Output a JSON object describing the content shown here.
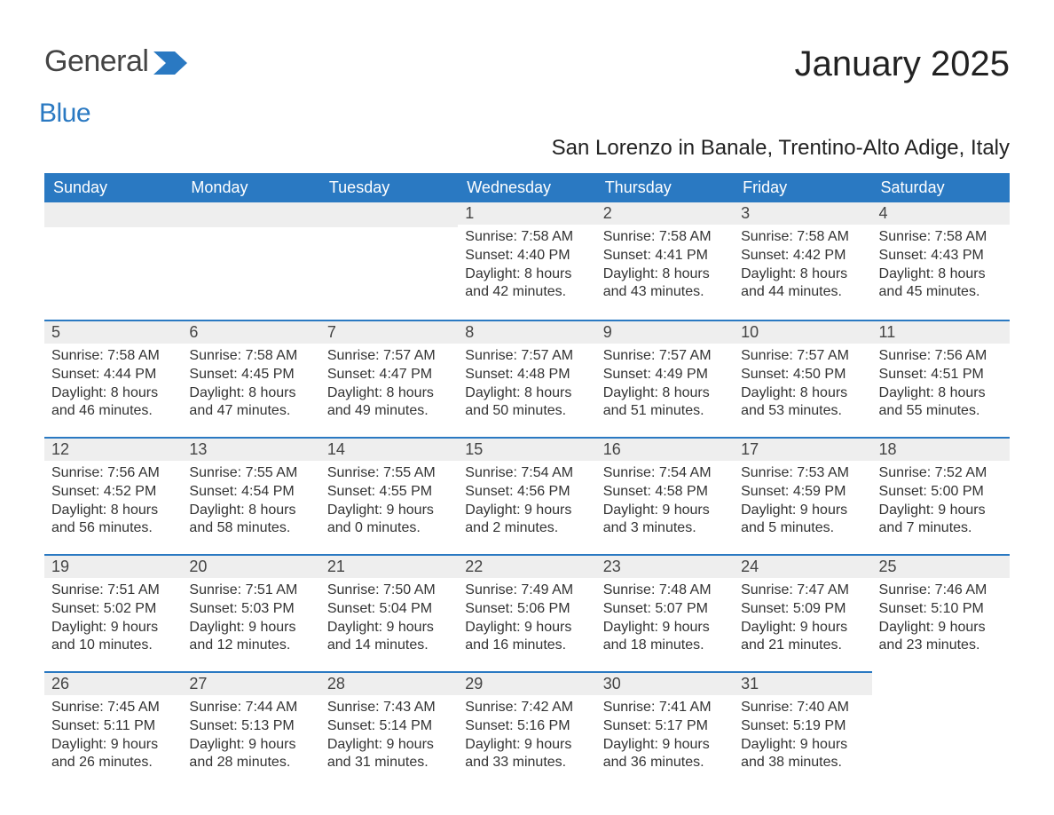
{
  "logo": {
    "text_general": "General",
    "text_blue": "Blue",
    "accent_color": "#2a79c2",
    "gray_color": "#444444"
  },
  "title": "January 2025",
  "subtitle": "San Lorenzo in Banale, Trentino-Alto Adige, Italy",
  "colors": {
    "header_bg": "#2a79c2",
    "header_text": "#ffffff",
    "daybar_bg": "#eeeeee",
    "daybar_border": "#2a79c2",
    "body_text": "#333333",
    "page_bg": "#ffffff"
  },
  "typography": {
    "title_fontsize": 40,
    "subtitle_fontsize": 24,
    "header_fontsize": 18,
    "daynum_fontsize": 18,
    "content_fontsize": 16,
    "font_family": "Arial"
  },
  "calendar": {
    "type": "table",
    "columns": [
      "Sunday",
      "Monday",
      "Tuesday",
      "Wednesday",
      "Thursday",
      "Friday",
      "Saturday"
    ],
    "weeks": [
      [
        null,
        null,
        null,
        {
          "day": "1",
          "sunrise": "Sunrise: 7:58 AM",
          "sunset": "Sunset: 4:40 PM",
          "daylight1": "Daylight: 8 hours",
          "daylight2": "and 42 minutes."
        },
        {
          "day": "2",
          "sunrise": "Sunrise: 7:58 AM",
          "sunset": "Sunset: 4:41 PM",
          "daylight1": "Daylight: 8 hours",
          "daylight2": "and 43 minutes."
        },
        {
          "day": "3",
          "sunrise": "Sunrise: 7:58 AM",
          "sunset": "Sunset: 4:42 PM",
          "daylight1": "Daylight: 8 hours",
          "daylight2": "and 44 minutes."
        },
        {
          "day": "4",
          "sunrise": "Sunrise: 7:58 AM",
          "sunset": "Sunset: 4:43 PM",
          "daylight1": "Daylight: 8 hours",
          "daylight2": "and 45 minutes."
        }
      ],
      [
        {
          "day": "5",
          "sunrise": "Sunrise: 7:58 AM",
          "sunset": "Sunset: 4:44 PM",
          "daylight1": "Daylight: 8 hours",
          "daylight2": "and 46 minutes."
        },
        {
          "day": "6",
          "sunrise": "Sunrise: 7:58 AM",
          "sunset": "Sunset: 4:45 PM",
          "daylight1": "Daylight: 8 hours",
          "daylight2": "and 47 minutes."
        },
        {
          "day": "7",
          "sunrise": "Sunrise: 7:57 AM",
          "sunset": "Sunset: 4:47 PM",
          "daylight1": "Daylight: 8 hours",
          "daylight2": "and 49 minutes."
        },
        {
          "day": "8",
          "sunrise": "Sunrise: 7:57 AM",
          "sunset": "Sunset: 4:48 PM",
          "daylight1": "Daylight: 8 hours",
          "daylight2": "and 50 minutes."
        },
        {
          "day": "9",
          "sunrise": "Sunrise: 7:57 AM",
          "sunset": "Sunset: 4:49 PM",
          "daylight1": "Daylight: 8 hours",
          "daylight2": "and 51 minutes."
        },
        {
          "day": "10",
          "sunrise": "Sunrise: 7:57 AM",
          "sunset": "Sunset: 4:50 PM",
          "daylight1": "Daylight: 8 hours",
          "daylight2": "and 53 minutes."
        },
        {
          "day": "11",
          "sunrise": "Sunrise: 7:56 AM",
          "sunset": "Sunset: 4:51 PM",
          "daylight1": "Daylight: 8 hours",
          "daylight2": "and 55 minutes."
        }
      ],
      [
        {
          "day": "12",
          "sunrise": "Sunrise: 7:56 AM",
          "sunset": "Sunset: 4:52 PM",
          "daylight1": "Daylight: 8 hours",
          "daylight2": "and 56 minutes."
        },
        {
          "day": "13",
          "sunrise": "Sunrise: 7:55 AM",
          "sunset": "Sunset: 4:54 PM",
          "daylight1": "Daylight: 8 hours",
          "daylight2": "and 58 minutes."
        },
        {
          "day": "14",
          "sunrise": "Sunrise: 7:55 AM",
          "sunset": "Sunset: 4:55 PM",
          "daylight1": "Daylight: 9 hours",
          "daylight2": "and 0 minutes."
        },
        {
          "day": "15",
          "sunrise": "Sunrise: 7:54 AM",
          "sunset": "Sunset: 4:56 PM",
          "daylight1": "Daylight: 9 hours",
          "daylight2": "and 2 minutes."
        },
        {
          "day": "16",
          "sunrise": "Sunrise: 7:54 AM",
          "sunset": "Sunset: 4:58 PM",
          "daylight1": "Daylight: 9 hours",
          "daylight2": "and 3 minutes."
        },
        {
          "day": "17",
          "sunrise": "Sunrise: 7:53 AM",
          "sunset": "Sunset: 4:59 PM",
          "daylight1": "Daylight: 9 hours",
          "daylight2": "and 5 minutes."
        },
        {
          "day": "18",
          "sunrise": "Sunrise: 7:52 AM",
          "sunset": "Sunset: 5:00 PM",
          "daylight1": "Daylight: 9 hours",
          "daylight2": "and 7 minutes."
        }
      ],
      [
        {
          "day": "19",
          "sunrise": "Sunrise: 7:51 AM",
          "sunset": "Sunset: 5:02 PM",
          "daylight1": "Daylight: 9 hours",
          "daylight2": "and 10 minutes."
        },
        {
          "day": "20",
          "sunrise": "Sunrise: 7:51 AM",
          "sunset": "Sunset: 5:03 PM",
          "daylight1": "Daylight: 9 hours",
          "daylight2": "and 12 minutes."
        },
        {
          "day": "21",
          "sunrise": "Sunrise: 7:50 AM",
          "sunset": "Sunset: 5:04 PM",
          "daylight1": "Daylight: 9 hours",
          "daylight2": "and 14 minutes."
        },
        {
          "day": "22",
          "sunrise": "Sunrise: 7:49 AM",
          "sunset": "Sunset: 5:06 PM",
          "daylight1": "Daylight: 9 hours",
          "daylight2": "and 16 minutes."
        },
        {
          "day": "23",
          "sunrise": "Sunrise: 7:48 AM",
          "sunset": "Sunset: 5:07 PM",
          "daylight1": "Daylight: 9 hours",
          "daylight2": "and 18 minutes."
        },
        {
          "day": "24",
          "sunrise": "Sunrise: 7:47 AM",
          "sunset": "Sunset: 5:09 PM",
          "daylight1": "Daylight: 9 hours",
          "daylight2": "and 21 minutes."
        },
        {
          "day": "25",
          "sunrise": "Sunrise: 7:46 AM",
          "sunset": "Sunset: 5:10 PM",
          "daylight1": "Daylight: 9 hours",
          "daylight2": "and 23 minutes."
        }
      ],
      [
        {
          "day": "26",
          "sunrise": "Sunrise: 7:45 AM",
          "sunset": "Sunset: 5:11 PM",
          "daylight1": "Daylight: 9 hours",
          "daylight2": "and 26 minutes."
        },
        {
          "day": "27",
          "sunrise": "Sunrise: 7:44 AM",
          "sunset": "Sunset: 5:13 PM",
          "daylight1": "Daylight: 9 hours",
          "daylight2": "and 28 minutes."
        },
        {
          "day": "28",
          "sunrise": "Sunrise: 7:43 AM",
          "sunset": "Sunset: 5:14 PM",
          "daylight1": "Daylight: 9 hours",
          "daylight2": "and 31 minutes."
        },
        {
          "day": "29",
          "sunrise": "Sunrise: 7:42 AM",
          "sunset": "Sunset: 5:16 PM",
          "daylight1": "Daylight: 9 hours",
          "daylight2": "and 33 minutes."
        },
        {
          "day": "30",
          "sunrise": "Sunrise: 7:41 AM",
          "sunset": "Sunset: 5:17 PM",
          "daylight1": "Daylight: 9 hours",
          "daylight2": "and 36 minutes."
        },
        {
          "day": "31",
          "sunrise": "Sunrise: 7:40 AM",
          "sunset": "Sunset: 5:19 PM",
          "daylight1": "Daylight: 9 hours",
          "daylight2": "and 38 minutes."
        },
        null
      ]
    ]
  }
}
